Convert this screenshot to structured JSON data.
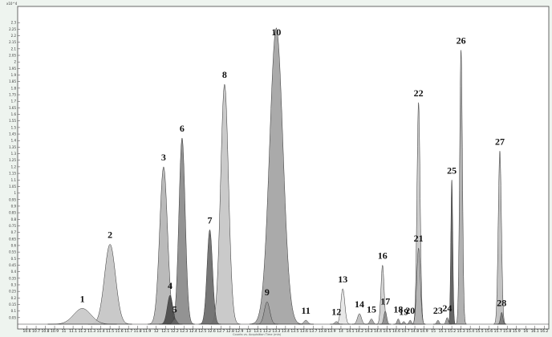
{
  "chart_data": {
    "type": "area",
    "title": "",
    "y_unit_label": "x10^4",
    "xlabel": "Counts vs. Acquisition Time (min)",
    "ylabel": "",
    "xlim": [
      10.5,
      16.25
    ],
    "ylim": [
      0,
      2.35
    ],
    "grid": false,
    "y_ticks": [
      0.05,
      0.1,
      0.15,
      0.2,
      0.25,
      0.3,
      0.35,
      0.4,
      0.45,
      0.5,
      0.55,
      0.6,
      0.65,
      0.7,
      0.75,
      0.8,
      0.85,
      0.9,
      0.95,
      1,
      1.05,
      1.1,
      1.15,
      1.2,
      1.25,
      1.3,
      1.35,
      1.4,
      1.45,
      1.5,
      1.55,
      1.6,
      1.65,
      1.7,
      1.75,
      1.8,
      1.85,
      1.9,
      1.95,
      2,
      2.05,
      2.1,
      2.15,
      2.2,
      2.25,
      2.3
    ],
    "x_ticks": [
      10.6,
      10.7,
      10.8,
      10.9,
      11,
      11.1,
      11.2,
      11.3,
      11.4,
      11.5,
      11.6,
      11.7,
      11.8,
      11.9,
      12,
      12.1,
      12.2,
      12.3,
      12.4,
      12.5,
      12.6,
      12.7,
      12.8,
      12.9,
      13,
      13.1,
      13.2,
      13.3,
      13.4,
      13.5,
      13.6,
      13.7,
      13.8,
      13.9,
      14,
      14.1,
      14.2,
      14.3,
      14.4,
      14.5,
      14.6,
      14.7,
      14.8,
      14.9,
      15,
      15.1,
      15.2,
      15.3,
      15.4,
      15.5,
      15.6,
      15.7,
      15.8,
      15.9,
      16,
      16.1,
      16.2
    ],
    "peaks": [
      {
        "label": "1",
        "rt": 11.2,
        "height": 0.12,
        "width": 0.22,
        "color": "#c8c8c8"
      },
      {
        "label": "2",
        "rt": 11.5,
        "height": 0.61,
        "width": 0.14,
        "color": "#c4c4c4"
      },
      {
        "label": "3",
        "rt": 12.08,
        "height": 1.2,
        "width": 0.1,
        "color": "#b4b4b4"
      },
      {
        "label": "4",
        "rt": 12.15,
        "height": 0.22,
        "width": 0.07,
        "color": "#4a4a4a"
      },
      {
        "label": "5",
        "rt": 12.2,
        "height": 0.04,
        "width": 0.05,
        "color": "#666666"
      },
      {
        "label": "6",
        "rt": 12.28,
        "height": 1.42,
        "width": 0.08,
        "color": "#8a8a8a"
      },
      {
        "label": "7",
        "rt": 12.58,
        "height": 0.72,
        "width": 0.07,
        "color": "#6a6a6a"
      },
      {
        "label": "8",
        "rt": 12.74,
        "height": 1.83,
        "width": 0.1,
        "color": "#c6c6c6"
      },
      {
        "label": "9",
        "rt": 13.2,
        "height": 0.17,
        "width": 0.07,
        "color": "#9a9a9a"
      },
      {
        "label": "10",
        "rt": 13.3,
        "height": 2.26,
        "width": 0.17,
        "color": "#a3a3a3"
      },
      {
        "label": "11",
        "rt": 13.62,
        "height": 0.03,
        "width": 0.05,
        "color": "#aaaaaa"
      },
      {
        "label": "12",
        "rt": 13.95,
        "height": 0.02,
        "width": 0.04,
        "color": "#aaaaaa"
      },
      {
        "label": "13",
        "rt": 14.02,
        "height": 0.27,
        "width": 0.05,
        "color": "#e6e6e6"
      },
      {
        "label": "14",
        "rt": 14.2,
        "height": 0.08,
        "width": 0.05,
        "color": "#bdbdbd"
      },
      {
        "label": "15",
        "rt": 14.33,
        "height": 0.04,
        "width": 0.04,
        "color": "#a5a5a5"
      },
      {
        "label": "16",
        "rt": 14.45,
        "height": 0.45,
        "width": 0.04,
        "color": "#cfcfcf"
      },
      {
        "label": "17",
        "rt": 14.48,
        "height": 0.1,
        "width": 0.035,
        "color": "#8c8c8c"
      },
      {
        "label": "18",
        "rt": 14.62,
        "height": 0.04,
        "width": 0.03,
        "color": "#9a9a9a"
      },
      {
        "label": "19",
        "rt": 14.68,
        "height": 0.02,
        "width": 0.03,
        "color": "#9a9a9a"
      },
      {
        "label": "20",
        "rt": 14.75,
        "height": 0.03,
        "width": 0.03,
        "color": "#9a9a9a"
      },
      {
        "label": "21",
        "rt": 14.84,
        "height": 0.58,
        "width": 0.045,
        "color": "#b3b3b3"
      },
      {
        "label": "22",
        "rt": 14.84,
        "height": 1.69,
        "width": 0.04,
        "color": "#c9c9c9"
      },
      {
        "label": "23",
        "rt": 15.05,
        "height": 0.03,
        "width": 0.03,
        "color": "#9a9a9a"
      },
      {
        "label": "24",
        "rt": 15.15,
        "height": 0.05,
        "width": 0.03,
        "color": "#9a9a9a"
      },
      {
        "label": "25",
        "rt": 15.2,
        "height": 1.1,
        "width": 0.025,
        "color": "#5a5a5a"
      },
      {
        "label": "26",
        "rt": 15.3,
        "height": 2.09,
        "width": 0.035,
        "color": "#aaaaaa"
      },
      {
        "label": "27",
        "rt": 15.72,
        "height": 1.32,
        "width": 0.04,
        "color": "#bebebe"
      },
      {
        "label": "28",
        "rt": 15.74,
        "height": 0.09,
        "width": 0.03,
        "color": "#7a7a7a"
      }
    ]
  }
}
